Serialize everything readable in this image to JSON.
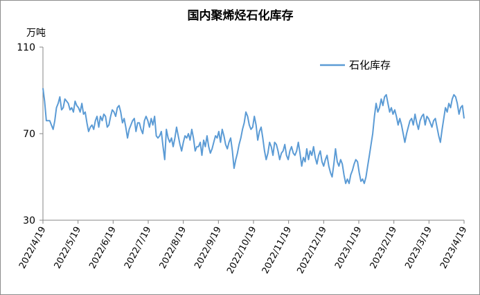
{
  "chart_data": {
    "type": "line",
    "title": "国内聚烯烃石化库存",
    "y_unit_label": "万吨",
    "ylim": [
      30,
      110
    ],
    "y_ticks": [
      30,
      70,
      110
    ],
    "x_ticks": [
      "2022/4/19",
      "2022/5/19",
      "2022/6/19",
      "2022/7/19",
      "2022/8/19",
      "2022/9/19",
      "2022/10/19",
      "2022/11/19",
      "2022/12/19",
      "2023/1/19",
      "2023/2/19",
      "2023/3/19",
      "2023/4/19"
    ],
    "legend_position": "top-right",
    "grid": false,
    "series": [
      {
        "name": "石化库存",
        "color": "#5b9bd5",
        "x_start": "2022/4/19",
        "x_end": "2023/4/19",
        "values": [
          91,
          85,
          76,
          76,
          76,
          74,
          72,
          76,
          82,
          84,
          87,
          81,
          82,
          86,
          85,
          84,
          81,
          82,
          80,
          85,
          83,
          82,
          80,
          84,
          79,
          80,
          75,
          71,
          73,
          74,
          72,
          76,
          78,
          73,
          78,
          76,
          79,
          78,
          73,
          74,
          78,
          81,
          80,
          78,
          82,
          83,
          80,
          75,
          77,
          73,
          68,
          72,
          74,
          76,
          77,
          71,
          75,
          75,
          72,
          70,
          76,
          78,
          76,
          73,
          77,
          74,
          78,
          69,
          68,
          69,
          71,
          64,
          58,
          72,
          68,
          66,
          68,
          64,
          68,
          73,
          69,
          65,
          62,
          66,
          69,
          68,
          70,
          67,
          72,
          68,
          62,
          64,
          64,
          66,
          60,
          67,
          64,
          69,
          64,
          61,
          63,
          66,
          69,
          68,
          71,
          66,
          72,
          69,
          65,
          63,
          66,
          68,
          62,
          54,
          58,
          61,
          65,
          68,
          72,
          75,
          80,
          78,
          74,
          72,
          73,
          78,
          74,
          67,
          71,
          73,
          68,
          62,
          58,
          61,
          66,
          64,
          60,
          66,
          65,
          62,
          58,
          61,
          62,
          65,
          60,
          58,
          62,
          64,
          61,
          60,
          62,
          66,
          61,
          55,
          59,
          57,
          63,
          58,
          62,
          60,
          64,
          59,
          56,
          60,
          62,
          57,
          55,
          58,
          60,
          55,
          52,
          50,
          56,
          63,
          57,
          55,
          58,
          56,
          51,
          47,
          49,
          47,
          51,
          53,
          56,
          58,
          57,
          52,
          48,
          49,
          47,
          50,
          55,
          60,
          65,
          70,
          78,
          84,
          80,
          82,
          86,
          83,
          87,
          88,
          84,
          80,
          82,
          79,
          81,
          78,
          74,
          77,
          74,
          70,
          66,
          70,
          73,
          76,
          77,
          74,
          79,
          75,
          72,
          76,
          78,
          79,
          74,
          78,
          77,
          75,
          73,
          76,
          77,
          73,
          69,
          66,
          72,
          77,
          82,
          80,
          84,
          82,
          86,
          88,
          87,
          84,
          79,
          82,
          83,
          77
        ]
      }
    ]
  }
}
